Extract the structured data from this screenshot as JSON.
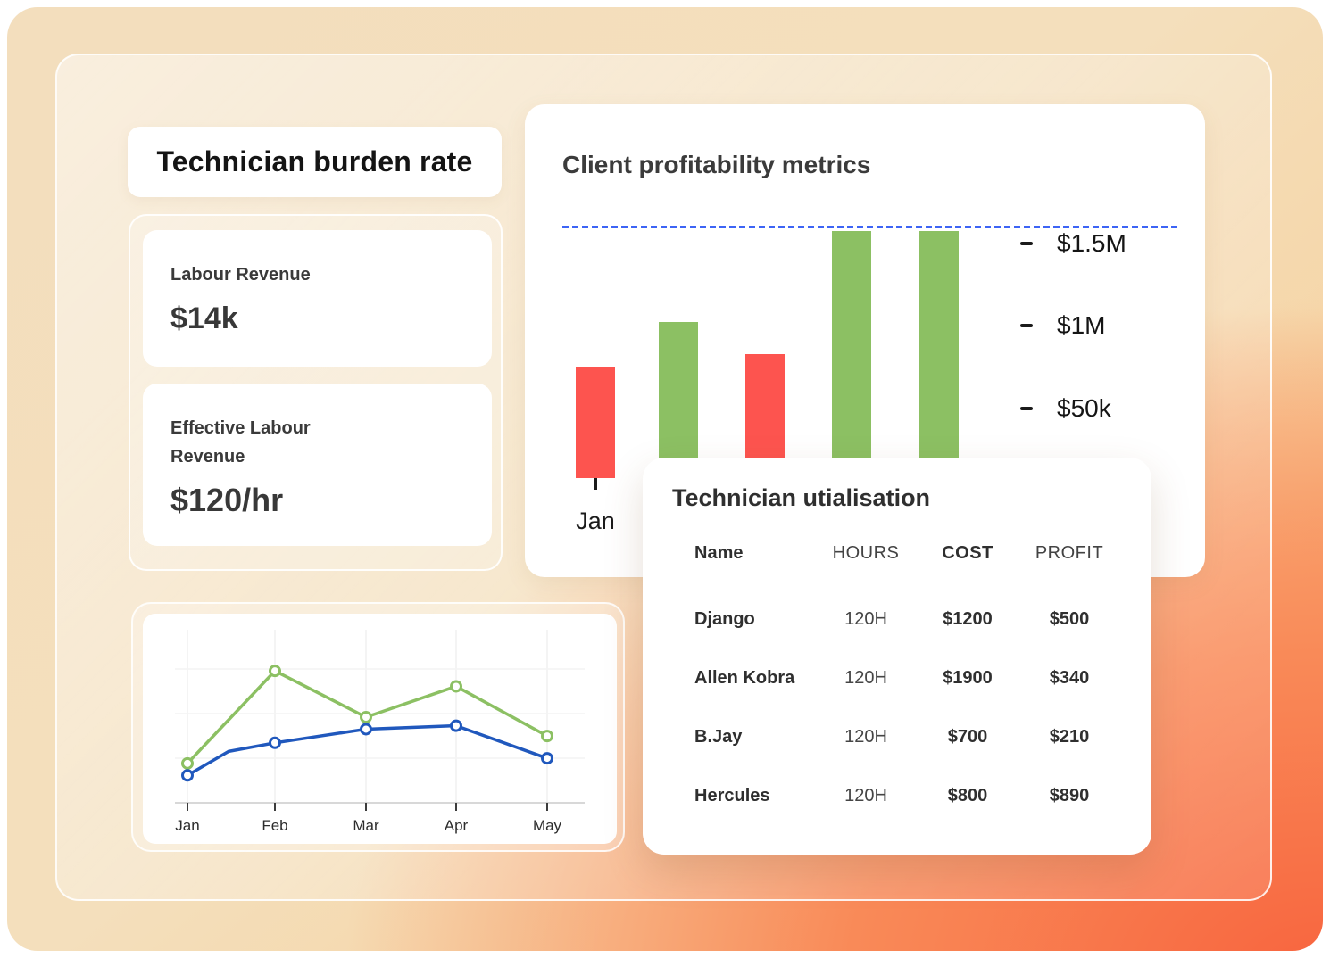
{
  "burden": {
    "title": "Technician burden rate",
    "cards": [
      {
        "label": "Labour Revenue",
        "value": "$14k"
      },
      {
        "label": "Effective Labour Revenue",
        "value": "$120/hr"
      }
    ]
  },
  "profitability": {
    "title": "Client profitability metrics"
  },
  "utilisation": {
    "title": "Technician utialisation",
    "columns": [
      "Name",
      "HOURS",
      "COST",
      "PROFIT"
    ],
    "rows": [
      {
        "name": "Django",
        "hours": "120H",
        "cost": "$1200",
        "profit": "$500"
      },
      {
        "name": "Allen Kobra",
        "hours": "120H",
        "cost": "$1900",
        "profit": "$340"
      },
      {
        "name": "B.Jay",
        "hours": "120H",
        "cost": "$700",
        "profit": "$210"
      },
      {
        "name": "Hercules",
        "hours": "120H",
        "cost": "$800",
        "profit": "$890"
      }
    ]
  },
  "colors": {
    "bar_green": "#8cc063",
    "bar_red": "#fd544f",
    "line_green": "#8cc063",
    "line_blue": "#2058bd",
    "target_dotted_blue": "#3d64f5"
  },
  "chart_data": [
    {
      "type": "bar",
      "title": "Client profitability metrics",
      "categories": [
        "Jan",
        "",
        "",
        "",
        ""
      ],
      "visible_x_labels": [
        "Jan"
      ],
      "values": [
        0.44,
        0.62,
        0.49,
        0.98,
        0.98
      ],
      "bar_colors": [
        "#fd544f",
        "#8cc063",
        "#fd544f",
        "#8cc063",
        "#8cc063"
      ],
      "y_tick_labels": [
        "$1.5M",
        "$1M",
        "$50k"
      ],
      "target_line": {
        "style": "dotted",
        "color": "#3d64f5",
        "value": 1.0
      },
      "ylim": [
        0,
        1
      ],
      "grid": false,
      "legend": "none"
    },
    {
      "type": "line",
      "x": [
        "Jan",
        "Feb",
        "Mar",
        "Apr",
        "May"
      ],
      "series": [
        {
          "name": "series-green",
          "color": "#8cc063",
          "values": [
            23,
            77,
            50,
            68,
            39
          ],
          "extra_points": []
        },
        {
          "name": "series-blue",
          "color": "#2058bd",
          "values": [
            16,
            35,
            43,
            45,
            26
          ],
          "extra_points": [
            {
              "x_index": 0.47,
              "value": 30
            }
          ]
        }
      ],
      "ylim": [
        0,
        100
      ],
      "grid": true,
      "markers": "open-circle",
      "legend": "none"
    }
  ]
}
